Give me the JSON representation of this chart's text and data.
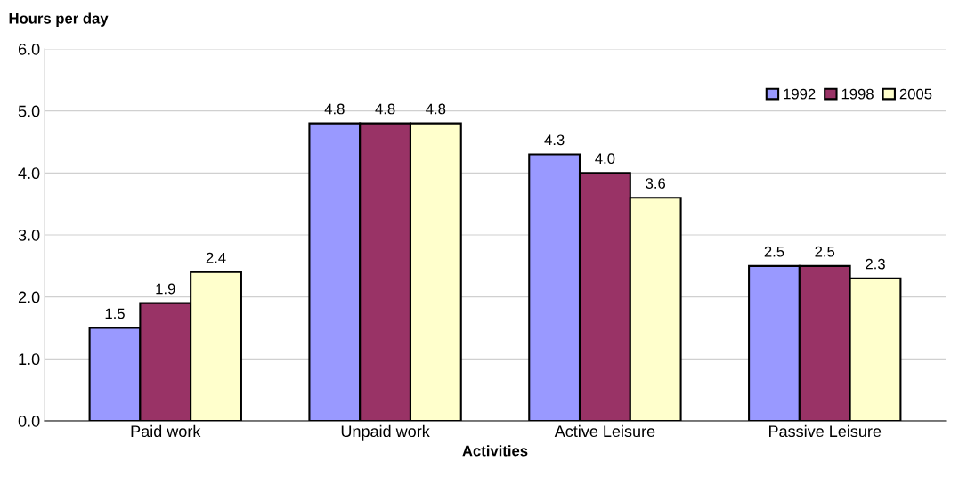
{
  "chart_data": {
    "type": "bar",
    "categories": [
      "Paid work",
      "Unpaid work",
      "Active Leisure",
      "Passive Leisure"
    ],
    "series": [
      {
        "name": "1992",
        "color": "#9999ff",
        "values": [
          1.5,
          4.8,
          4.3,
          2.5
        ],
        "value_labels": [
          "1.5",
          "4.8",
          "4.3",
          "2.5"
        ]
      },
      {
        "name": "1998",
        "color": "#993366",
        "values": [
          1.9,
          4.8,
          4.0,
          2.5
        ],
        "value_labels": [
          "1.9",
          "4.8",
          "4.0",
          "2.5"
        ]
      },
      {
        "name": "2005",
        "color": "#ffffcc",
        "values": [
          2.4,
          4.8,
          3.6,
          2.3
        ],
        "value_labels": [
          "2.4",
          "4.8",
          "3.6",
          "2.3"
        ]
      }
    ],
    "xlabel": "Activities",
    "ylabel": "Hours per day",
    "ylim": [
      0,
      6
    ],
    "yticks": [
      {
        "value": 0,
        "label": "0.0"
      },
      {
        "value": 1,
        "label": "1.0"
      },
      {
        "value": 2,
        "label": "2.0"
      },
      {
        "value": 3,
        "label": "3.0"
      },
      {
        "value": 4,
        "label": "4.0"
      },
      {
        "value": 5,
        "label": "5.0"
      },
      {
        "value": 6,
        "label": "6.0"
      }
    ],
    "grid": "y",
    "legend": "top right"
  }
}
